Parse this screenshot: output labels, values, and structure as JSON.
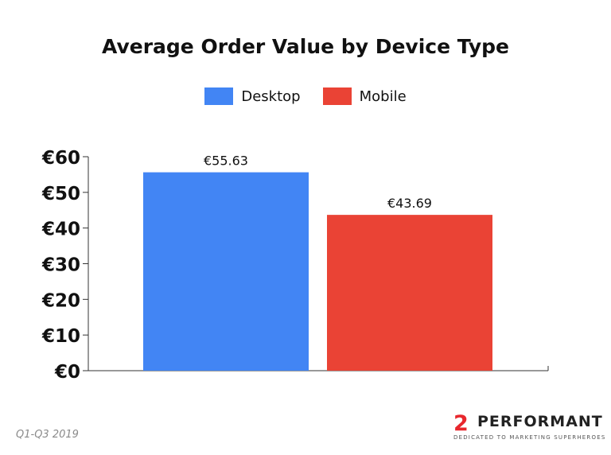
{
  "chart_data": {
    "type": "bar",
    "title": "Average Order Value by Device Type",
    "categories": [
      "Desktop",
      "Mobile"
    ],
    "values": [
      55.63,
      43.69
    ],
    "value_labels": [
      "€55.63",
      "€43.69"
    ],
    "colors": [
      "#4285f4",
      "#ea4335"
    ],
    "legend": [
      {
        "label": "Desktop",
        "color": "#4285f4"
      },
      {
        "label": "Mobile",
        "color": "#ea4335"
      }
    ],
    "legend_position": "top",
    "ylim": [
      0,
      60
    ],
    "yticks": [
      0,
      10,
      20,
      30,
      40,
      50,
      60
    ],
    "ytick_labels": [
      "€0",
      "€10",
      "€20",
      "€30",
      "€40",
      "€50",
      "€60"
    ],
    "grid": false
  },
  "footer": {
    "period": "Q1-Q3 2019"
  },
  "brand": {
    "logo_mark": "2",
    "name": "PERFORMANT",
    "tagline": "DEDICATED TO MARKETING SUPERHEROES",
    "accent": "#e8272d"
  }
}
